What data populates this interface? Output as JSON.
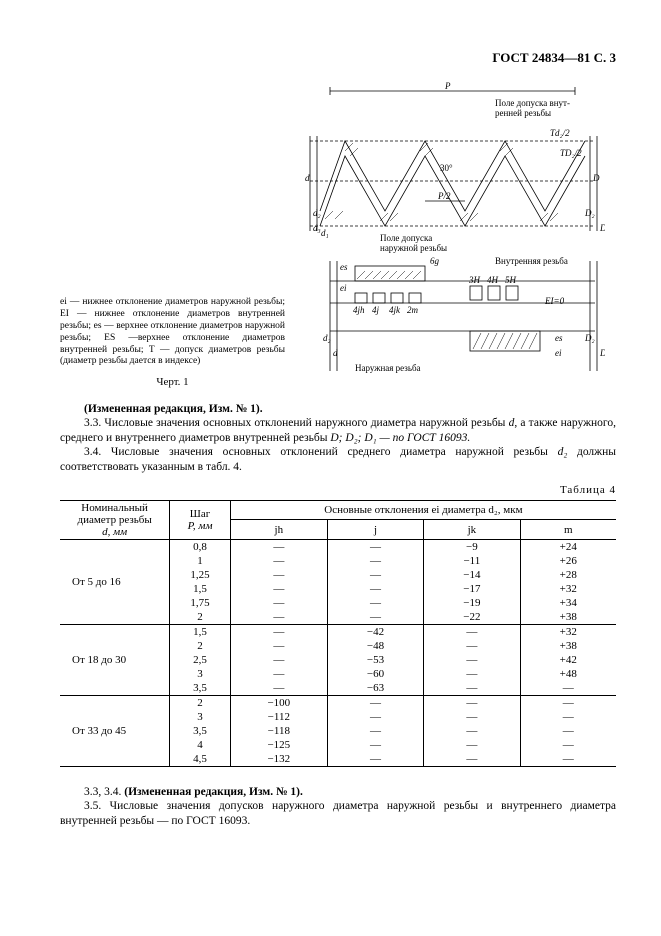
{
  "header": {
    "title": "ГОСТ 24834—81 С. 3"
  },
  "figure": {
    "notes_text": "ei — нижнее отклонение диаметров наружной резьбы; EI — нижнее отклонение диаметров внутренней резьбы; es — верхнее отклонение диаметров наружной резьбы; ES —верхнее отклонение диаметров внутренней резьбы; T — допуск диаметров резьбы (диаметр резьбы дается в индексе)",
    "caption": "Черт. 1",
    "svg_labels": {
      "p_top": "P",
      "tol_label1": "Поле допуска внут-",
      "tol_label2": "ренней резьбы",
      "angle": "30°",
      "half_p": "P/2",
      "outer_tol1": "Поле допуска",
      "outer_tol2": "наружной резьбы",
      "inner_thread": "Внутренняя резьба",
      "outer_thread": "Наружная резьба",
      "d": "d",
      "d1": "d₁",
      "d2": "d₂",
      "d3": "d₃",
      "D": "D",
      "D1": "D₁",
      "D2": "D₂",
      "t1": "Td₂/2",
      "t2": "TD₂/2",
      "sixg": "6g",
      "es_lbl": "es",
      "ei_lbl": "ei",
      "quals": [
        "4jh",
        "4j",
        "4jk",
        "2m",
        "3H",
        "4H",
        "5H"
      ],
      "ei0": "EI=0"
    }
  },
  "body": {
    "p0": "(Измененная редакция, Изм. № 1).",
    "p1_a": "3.3. Числовые значения основных отклонений наружного диаметра наружной резьбы ",
    "p1_d": "d",
    "p1_b": ", а также наружного, среднего и внутреннего диаметров внутренней резьбы ",
    "p1_c": "D; D₂; D₁ — по ГОСТ 16093.",
    "p2_a": "3.4. Числовые значения основных отклонений среднего диаметра наружной резьбы ",
    "p2_d": "d₂",
    "p2_b": " должны соответствовать указанным в табл. 4.",
    "p3": "3.3, 3.4. (Измененная редакция, Изм. № 1).",
    "p4": "3.5. Числовые значения допусков наружного диаметра наружной резьбы и внутреннего диаметра внутренней резьбы — по ГОСТ 16093."
  },
  "table": {
    "label": "Таблица 4",
    "head": {
      "col1_line1": "Номинальный",
      "col1_line2": "диаметр резьбы",
      "col1_line3": "d,  мм",
      "col2_line1": "Шаг",
      "col2_line2": "P,  мм",
      "span_header": "Основные отклонения ei диаметра d₂, мкм",
      "sub_cols": [
        "jh",
        "j",
        "jk",
        "m"
      ]
    },
    "groups": [
      {
        "range": "От 5 до 16",
        "rows": [
          {
            "p": "0,8",
            "jh": "—",
            "j": "—",
            "jk": "−9",
            "m": "+24"
          },
          {
            "p": "1",
            "jh": "—",
            "j": "—",
            "jk": "−11",
            "m": "+26"
          },
          {
            "p": "1,25",
            "jh": "—",
            "j": "—",
            "jk": "−14",
            "m": "+28"
          },
          {
            "p": "1,5",
            "jh": "—",
            "j": "—",
            "jk": "−17",
            "m": "+32"
          },
          {
            "p": "1,75",
            "jh": "—",
            "j": "—",
            "jk": "−19",
            "m": "+34"
          },
          {
            "p": "2",
            "jh": "—",
            "j": "—",
            "jk": "−22",
            "m": "+38"
          }
        ]
      },
      {
        "range": "От 18 до 30",
        "rows": [
          {
            "p": "1,5",
            "jh": "—",
            "j": "−42",
            "jk": "—",
            "m": "+32"
          },
          {
            "p": "2",
            "jh": "—",
            "j": "−48",
            "jk": "—",
            "m": "+38"
          },
          {
            "p": "2,5",
            "jh": "—",
            "j": "−53",
            "jk": "—",
            "m": "+42"
          },
          {
            "p": "3",
            "jh": "—",
            "j": "−60",
            "jk": "—",
            "m": "+48"
          },
          {
            "p": "3,5",
            "jh": "—",
            "j": "−63",
            "jk": "—",
            "m": "—"
          }
        ]
      },
      {
        "range": "От 33 до 45",
        "rows": [
          {
            "p": "2",
            "jh": "−100",
            "j": "—",
            "jk": "—",
            "m": "—"
          },
          {
            "p": "3",
            "jh": "−112",
            "j": "—",
            "jk": "—",
            "m": "—"
          },
          {
            "p": "3,5",
            "jh": "−118",
            "j": "—",
            "jk": "—",
            "m": "—"
          },
          {
            "p": "4",
            "jh": "−125",
            "j": "—",
            "jk": "—",
            "m": "—"
          },
          {
            "p": "4,5",
            "jh": "−132",
            "j": "—",
            "jk": "—",
            "m": "—"
          }
        ]
      }
    ]
  }
}
